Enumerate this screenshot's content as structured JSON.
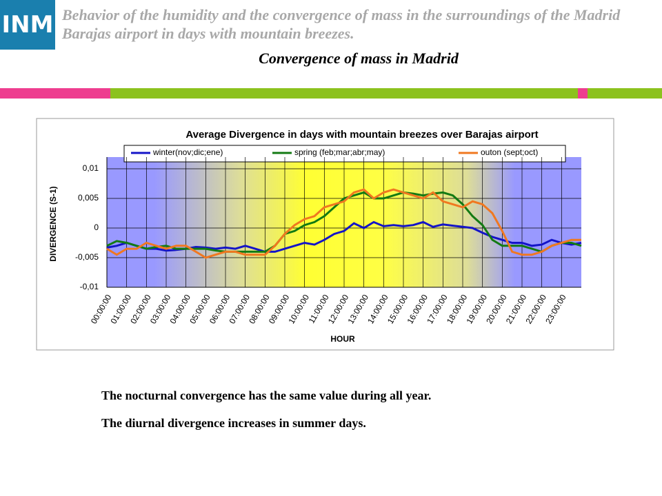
{
  "header": {
    "logo": "INM",
    "title": "Behavior of the humidity and the convergence of mass in the surroundings of the Madrid Barajas airport in days with mountain breezes.",
    "subtitle": "Convergence of mass in Madrid"
  },
  "chart_data": {
    "type": "line",
    "title": "Average Divergence in days with mountain breezes over Barajas airport",
    "x_label": "HOUR",
    "y_label": "DIVERGENCE (S-1)",
    "x": [
      0,
      0.5,
      1,
      1.5,
      2,
      2.5,
      3,
      3.5,
      4,
      4.5,
      5,
      5.5,
      6,
      6.5,
      7,
      7.5,
      8,
      8.5,
      9,
      9.5,
      10,
      10.5,
      11,
      11.5,
      12,
      12.5,
      13,
      13.5,
      14,
      14.5,
      15,
      15.5,
      16,
      16.5,
      17,
      17.5,
      18,
      18.5,
      19,
      19.5,
      20,
      20.5,
      21,
      21.5,
      22,
      22.5,
      23,
      23.5,
      24
    ],
    "xlim": [
      0,
      24
    ],
    "xticks": [
      {
        "value": 0,
        "label": "00:00:00"
      },
      {
        "value": 1,
        "label": "01:00:00"
      },
      {
        "value": 2,
        "label": "02:00:00"
      },
      {
        "value": 3,
        "label": "03:00:00"
      },
      {
        "value": 4,
        "label": "04:00:00"
      },
      {
        "value": 5,
        "label": "05:00:00"
      },
      {
        "value": 6,
        "label": "06:00:00"
      },
      {
        "value": 7,
        "label": "07:00:00"
      },
      {
        "value": 8,
        "label": "08:00:00"
      },
      {
        "value": 9,
        "label": "09:00:00"
      },
      {
        "value": 10,
        "label": "10:00:00"
      },
      {
        "value": 11,
        "label": "11:00:00"
      },
      {
        "value": 12,
        "label": "12:00:00"
      },
      {
        "value": 13,
        "label": "13:00:00"
      },
      {
        "value": 14,
        "label": "14:00:00"
      },
      {
        "value": 15,
        "label": "15:00:00"
      },
      {
        "value": 16,
        "label": "16:00:00"
      },
      {
        "value": 17,
        "label": "17:00:00"
      },
      {
        "value": 18,
        "label": "18:00:00"
      },
      {
        "value": 19,
        "label": "19:00:00"
      },
      {
        "value": 20,
        "label": "20:00:00"
      },
      {
        "value": 21,
        "label": "21:00:00"
      },
      {
        "value": 22,
        "label": "22:00:00"
      },
      {
        "value": 23,
        "label": "23:00:00"
      }
    ],
    "ylim": [
      -0.01,
      0.01
    ],
    "yticks": [
      {
        "value": 0.01,
        "label": "0,01"
      },
      {
        "value": 0.005,
        "label": "0,005"
      },
      0,
      {
        "value": -0.005,
        "label": "-0,005"
      },
      {
        "value": -0.01,
        "label": "-0,01"
      }
    ],
    "grid": true,
    "series": [
      {
        "name": "winter(nov;dic;ene)",
        "color": "#1414c8",
        "values": [
          -0.0033,
          -0.003,
          -0.0025,
          -0.003,
          -0.0035,
          -0.0035,
          -0.0038,
          -0.0037,
          -0.0035,
          -0.0032,
          -0.0033,
          -0.0035,
          -0.0033,
          -0.0035,
          -0.003,
          -0.0035,
          -0.004,
          -0.004,
          -0.0035,
          -0.003,
          -0.0025,
          -0.0028,
          -0.002,
          -0.001,
          -0.0005,
          0.0008,
          0,
          0.001,
          0.0003,
          0.0005,
          0.0003,
          0.0005,
          0.001,
          0.0002,
          0.0006,
          0.0004,
          0.0002,
          0,
          -0.0008,
          -0.0015,
          -0.002,
          -0.0025,
          -0.0025,
          -0.003,
          -0.0028,
          -0.002,
          -0.0025,
          -0.0028,
          -0.0025
        ]
      },
      {
        "name": "spring (feb;mar;abr;may)",
        "color": "#137a13",
        "values": [
          -0.003,
          -0.0022,
          -0.0025,
          -0.003,
          -0.0035,
          -0.0032,
          -0.003,
          -0.0035,
          -0.0035,
          -0.0035,
          -0.0035,
          -0.0038,
          -0.004,
          -0.004,
          -0.004,
          -0.004,
          -0.004,
          -0.003,
          -0.001,
          -0.0005,
          0.0005,
          0.001,
          0.002,
          0.0035,
          0.005,
          0.0055,
          0.006,
          0.005,
          0.005,
          0.0055,
          0.006,
          0.0058,
          0.0055,
          0.0058,
          0.006,
          0.0055,
          0.004,
          0.002,
          0.0005,
          -0.002,
          -0.003,
          -0.003,
          -0.003,
          -0.0035,
          -0.004,
          -0.003,
          -0.0025,
          -0.0025,
          -0.003
        ]
      },
      {
        "name": "outon (sept;oct)",
        "color": "#f07820",
        "values": [
          -0.0035,
          -0.0045,
          -0.0035,
          -0.0035,
          -0.0025,
          -0.003,
          -0.0035,
          -0.003,
          -0.003,
          -0.004,
          -0.005,
          -0.0045,
          -0.004,
          -0.004,
          -0.0045,
          -0.0045,
          -0.0045,
          -0.003,
          -0.001,
          0.0005,
          0.0015,
          0.002,
          0.0035,
          0.004,
          0.0045,
          0.006,
          0.0065,
          0.005,
          0.006,
          0.0065,
          0.006,
          0.0055,
          0.005,
          0.006,
          0.0045,
          0.004,
          0.0035,
          0.0045,
          0.004,
          0.0025,
          -0.0005,
          -0.004,
          -0.0045,
          -0.0045,
          -0.004,
          -0.003,
          -0.0025,
          -0.002,
          -0.002
        ]
      }
    ]
  },
  "notes": [
    "The nocturnal convergence has the same value during all  year.",
    "The diurnal divergence increases in summer days."
  ]
}
